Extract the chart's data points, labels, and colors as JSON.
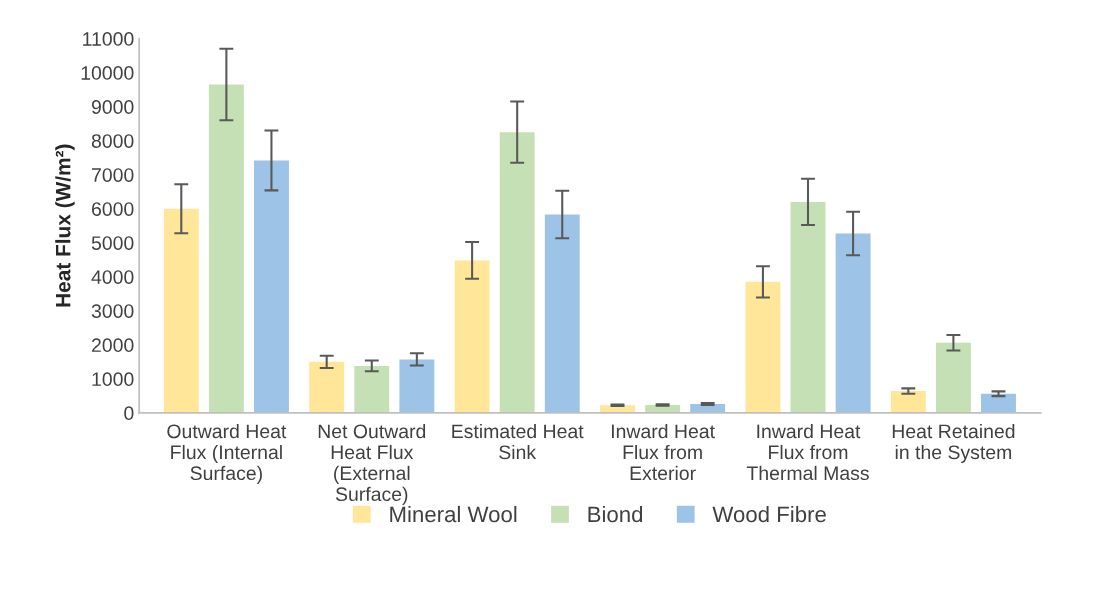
{
  "chart_data": {
    "type": "bar",
    "ylabel": "Heat Flux (W/m²)",
    "categories": [
      "Outward Heat\nFlux (Internal\nSurface)",
      "Net Outward\nHeat Flux\n(External\nSurface)",
      "Estimated Heat\nSink",
      "Inward Heat\nFlux from\nExterior",
      "Inward Heat\nFlux from\nThermal Mass",
      "Heat Retained\nin the System"
    ],
    "series": [
      {
        "name": "Mineral Wool",
        "color": "#ffe699",
        "values": [
          6000,
          1500,
          4480,
          220,
          3850,
          640
        ],
        "errors": [
          720,
          180,
          540,
          20,
          460,
          80
        ]
      },
      {
        "name": "Biond",
        "color": "#c5e0b4",
        "values": [
          9650,
          1380,
          8250,
          230,
          6200,
          2060
        ],
        "errors": [
          1050,
          160,
          900,
          20,
          680,
          230
        ]
      },
      {
        "name": "Wood Fibre",
        "color": "#9dc3e6",
        "values": [
          7420,
          1570,
          5830,
          260,
          5270,
          560
        ],
        "errors": [
          880,
          180,
          700,
          30,
          640,
          70
        ]
      }
    ],
    "ylim": [
      0,
      11000
    ],
    "yticks": [
      0,
      1000,
      2000,
      3000,
      4000,
      5000,
      6000,
      7000,
      8000,
      9000,
      10000,
      11000
    ],
    "grid": false,
    "legend": "bottom"
  }
}
